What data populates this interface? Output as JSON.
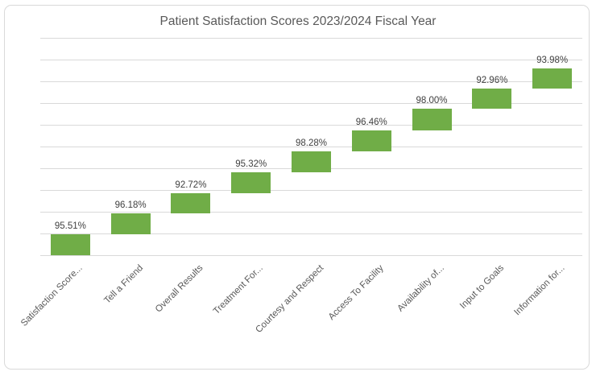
{
  "title": "Patient Satisfaction Scores 2023/2024 Fiscal Year",
  "chart_data": {
    "type": "bar",
    "subtype": "stacked-staircase-waterfall",
    "title": "Patient Satisfaction Scores 2023/2024 Fiscal Year",
    "categories": [
      "Satisfaction Score...",
      "Tell a Friend",
      "Overall Results",
      "Treatment For...",
      "Courtesy and Respect",
      "Access To Facility",
      "Availability of...",
      "Input to Goals",
      "Information for..."
    ],
    "values": [
      95.51,
      96.18,
      92.72,
      95.32,
      98.28,
      96.46,
      98.0,
      92.96,
      93.98
    ],
    "data_labels": [
      "95.51%",
      "96.18%",
      "92.72%",
      "95.32%",
      "98.28%",
      "96.46%",
      "98.00%",
      "92.96%",
      "93.98%"
    ],
    "stacking": "cumulative",
    "ylim": [
      0,
      1000
    ],
    "gridline_step": 100,
    "gridline_count": 11,
    "grid": true,
    "legend": "none",
    "y_tick_labels": "none",
    "x_label_rotation_deg": 45,
    "bar_color": "#70ad47",
    "gridline_color": "#d9d9d9",
    "data_label_color": "#404040",
    "axis_label_color": "#595959",
    "title_color": "#595959",
    "frame_border_color": "#d9d9d9",
    "background_color": "#ffffff"
  }
}
